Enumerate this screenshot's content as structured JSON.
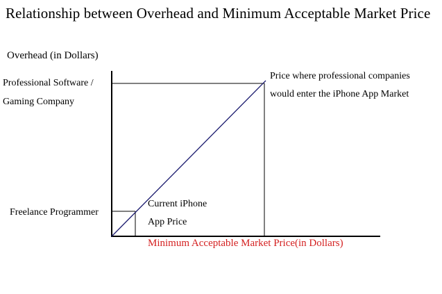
{
  "title": "Relationship between Overhead and Minimum Acceptable Market Price",
  "y_axis_label": "Overhead (in Dollars)",
  "x_axis_label": "Minimum Acceptable Market Price(in Dollars)",
  "y_levels": {
    "professional": [
      "Professional Software /",
      "Gaming Company"
    ],
    "freelance": "Freelance Programmer"
  },
  "annotations": {
    "professional_price": [
      "Price where professional companies",
      "would enter the iPhone App Market"
    ],
    "current_price": [
      "Current iPhone",
      "App Price"
    ]
  },
  "colors": {
    "axes": "#000000",
    "diagonal": "#1a1a6e",
    "x_axis_label": "#d42020",
    "text": "#000000"
  }
}
